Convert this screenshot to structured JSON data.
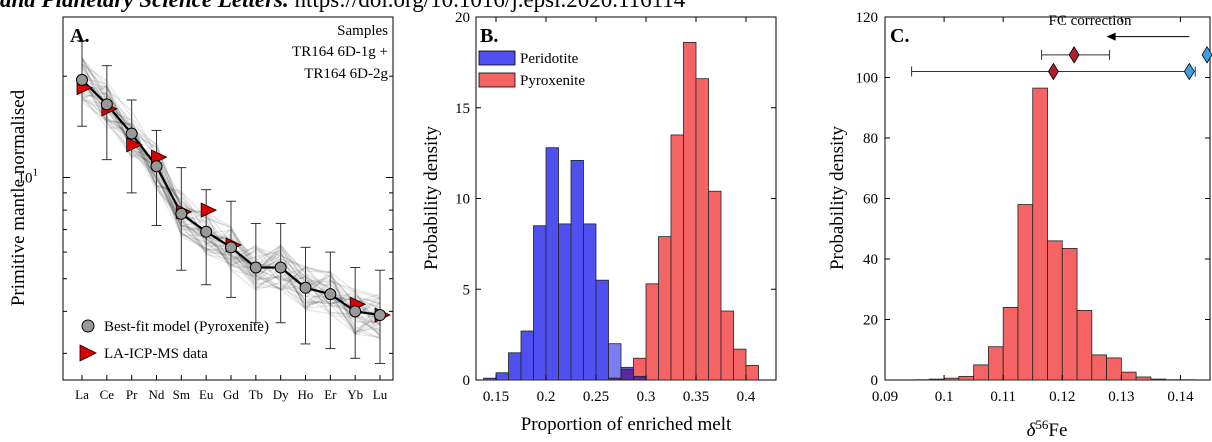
{
  "header": {
    "journal": "and Planetary Science Letters.",
    "doi": " https://doi.org/10.1016/j.epsl.2020.116114"
  },
  "colors": {
    "peridotite": "#5050f0",
    "pyroxenite": "#f56464",
    "overlap": "#5a2a9e",
    "diamond_dark": "#b01e2a",
    "diamond_light": "#3aa0e0",
    "model_marker": "#999999",
    "data_marker": "#dd0000"
  },
  "chart_data": [
    {
      "type": "line",
      "panel_label": "A.",
      "ylabel": "Primitive mantle normalised",
      "yscale": "log",
      "ylim": [
        2.5,
        30
      ],
      "ytick_labels": [
        {
          "value": 10,
          "base": "10",
          "exp": "1"
        }
      ],
      "categories": [
        "La",
        "Ce",
        "Pr",
        "Nd",
        "Sm",
        "Eu",
        "Gd",
        "Tb",
        "Dy",
        "Ho",
        "Er",
        "Yb",
        "Lu"
      ],
      "annotation": [
        "Samples",
        "TR164 6D-1g +",
        "TR164 6D-2g"
      ],
      "series": [
        {
          "name": "Best-fit model (Pyroxenite)",
          "values": [
            19.5,
            16.5,
            13.5,
            10.8,
            7.8,
            6.9,
            6.2,
            5.4,
            5.4,
            4.7,
            4.5,
            4.0,
            3.9
          ],
          "err_low": [
            14.2,
            11.3,
            9.0,
            7.2,
            5.3,
            4.8,
            4.4,
            3.7,
            3.7,
            3.2,
            3.1,
            2.9,
            2.8
          ],
          "err_high": [
            25.5,
            21.5,
            17.0,
            13.8,
            10.7,
            9.2,
            8.5,
            7.3,
            7.3,
            6.2,
            6.0,
            5.4,
            5.3
          ]
        },
        {
          "name": "LA-ICP-MS data",
          "values": [
            18.5,
            16.0,
            12.5,
            11.5,
            7.9,
            8.0,
            6.3,
            null,
            null,
            null,
            null,
            4.2,
            3.9
          ]
        }
      ],
      "legend": "bottom-left",
      "grid": false
    },
    {
      "type": "bar",
      "panel_label": "B.",
      "xlabel": "Proportion of enriched melt",
      "ylabel": "Probability density",
      "xlim": [
        0.13,
        0.43
      ],
      "ylim": [
        0,
        20
      ],
      "xticks": [
        0.15,
        0.2,
        0.25,
        0.3,
        0.35,
        0.4
      ],
      "xtick_labels": [
        "0.15",
        "0.2",
        "0.25",
        "0.3",
        "0.35",
        "0.4"
      ],
      "yticks": [
        0,
        5,
        10,
        15,
        20
      ],
      "ytick_labels": [
        "0",
        "5",
        "10",
        "15",
        "20"
      ],
      "bin_width": 0.0125,
      "bin_starts": [
        0.1375,
        0.15,
        0.1625,
        0.175,
        0.1875,
        0.2,
        0.2125,
        0.225,
        0.2375,
        0.25,
        0.2625,
        0.275,
        0.2875,
        0.3,
        0.3125,
        0.325,
        0.3375,
        0.35,
        0.3625,
        0.375,
        0.3875,
        0.4
      ],
      "series": [
        {
          "name": "Peridotite",
          "values": [
            0.1,
            0.4,
            1.5,
            2.7,
            8.5,
            12.8,
            8.6,
            12.1,
            8.6,
            5.5,
            2.0,
            0.7,
            0.2,
            0,
            0,
            0,
            0,
            0,
            0,
            0,
            0,
            0
          ]
        },
        {
          "name": "Pyroxenite",
          "values": [
            0,
            0,
            0,
            0,
            0,
            0,
            0,
            0,
            0,
            0,
            0.1,
            0.6,
            1.2,
            5.3,
            7.9,
            13.5,
            18.6,
            16.6,
            10.4,
            3.8,
            1.7,
            0.8
          ]
        }
      ],
      "legend": "top-left",
      "grid": false
    },
    {
      "type": "bar",
      "panel_label": "C.",
      "xlabel": "δ56Fe",
      "xlabel_parts": {
        "prefix": "δ",
        "sup": "56",
        "suffix": "Fe"
      },
      "ylabel": "Probability density",
      "xlim": [
        0.09,
        0.145
      ],
      "ylim": [
        0,
        120
      ],
      "xticks": [
        0.09,
        0.1,
        0.11,
        0.12,
        0.13,
        0.14
      ],
      "xtick_labels": [
        "0.09",
        "0.1",
        "0.11",
        "0.12",
        "0.13",
        "0.14"
      ],
      "yticks": [
        0,
        20,
        40,
        60,
        80,
        100,
        120
      ],
      "ytick_labels": [
        "0",
        "20",
        "40",
        "60",
        "80",
        "100",
        "120"
      ],
      "bin_width": 0.0025,
      "bin_starts": [
        0.095,
        0.0975,
        0.1,
        0.1025,
        0.105,
        0.1075,
        0.11,
        0.1125,
        0.115,
        0.1175,
        0.12,
        0.1225,
        0.125,
        0.1275,
        0.13,
        0.1325,
        0.135,
        0.1375,
        0.14
      ],
      "values": [
        0.1,
        0.3,
        0.6,
        1.2,
        5.0,
        11.0,
        24.0,
        58.0,
        96.5,
        46.0,
        43.5,
        23.0,
        8.3,
        7.3,
        2.6,
        1.0,
        0.3,
        0.1,
        0.1
      ],
      "estimates": [
        {
          "x": 0.1185,
          "y": 102,
          "xerr": [
            0.0945,
            0.1425
          ],
          "color": "dark"
        },
        {
          "x": 0.1415,
          "y": 102,
          "color": "light"
        },
        {
          "x": 0.122,
          "y": 107.5,
          "xerr": [
            0.1165,
            0.128
          ],
          "color": "dark"
        },
        {
          "x": 0.1445,
          "y": 107.5,
          "color": "light"
        }
      ],
      "arrow_label": "FC correction",
      "arrow": {
        "from": 0.1415,
        "to": 0.1275,
        "y": 113.5
      },
      "grid": false
    }
  ]
}
